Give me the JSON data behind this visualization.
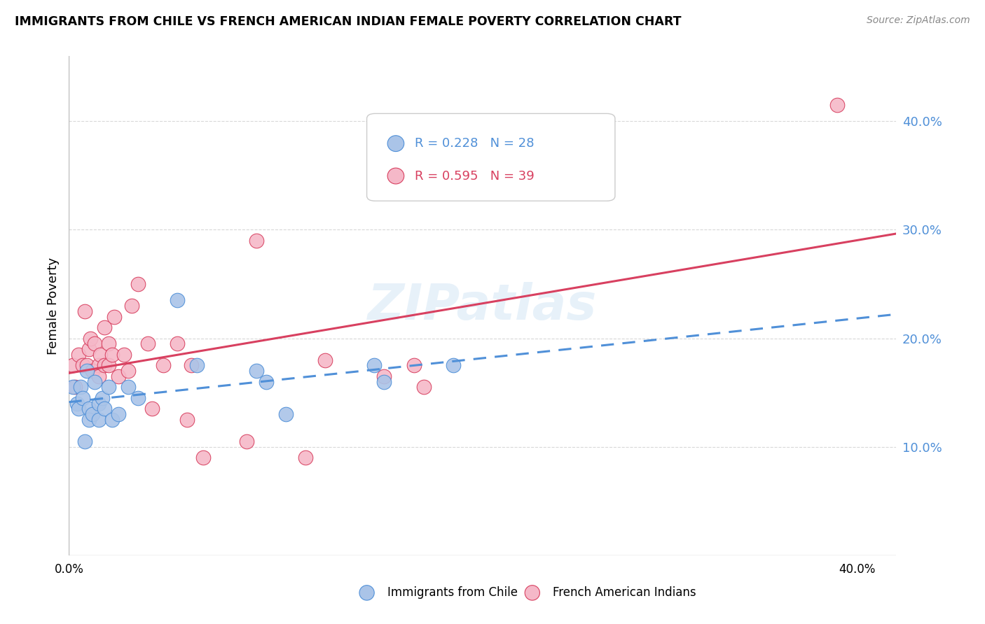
{
  "title": "IMMIGRANTS FROM CHILE VS FRENCH AMERICAN INDIAN FEMALE POVERTY CORRELATION CHART",
  "source": "Source: ZipAtlas.com",
  "ylabel": "Female Poverty",
  "legend_blue_r": "R = 0.228",
  "legend_blue_n": "N = 28",
  "legend_pink_r": "R = 0.595",
  "legend_pink_n": "N = 39",
  "legend_label_blue": "Immigrants from Chile",
  "legend_label_pink": "French American Indians",
  "blue_color": "#aac4e8",
  "pink_color": "#f5b8c8",
  "line_blue_color": "#5090d8",
  "line_pink_color": "#d84060",
  "blue_points_x": [
    0.002,
    0.004,
    0.005,
    0.006,
    0.007,
    0.008,
    0.009,
    0.01,
    0.01,
    0.012,
    0.013,
    0.015,
    0.015,
    0.017,
    0.018,
    0.02,
    0.022,
    0.025,
    0.03,
    0.035,
    0.055,
    0.065,
    0.095,
    0.1,
    0.11,
    0.155,
    0.16,
    0.195
  ],
  "blue_points_y": [
    0.155,
    0.14,
    0.135,
    0.155,
    0.145,
    0.105,
    0.17,
    0.135,
    0.125,
    0.13,
    0.16,
    0.14,
    0.125,
    0.145,
    0.135,
    0.155,
    0.125,
    0.13,
    0.155,
    0.145,
    0.235,
    0.175,
    0.17,
    0.16,
    0.13,
    0.175,
    0.16,
    0.175
  ],
  "pink_points_x": [
    0.002,
    0.003,
    0.005,
    0.007,
    0.008,
    0.009,
    0.01,
    0.011,
    0.012,
    0.013,
    0.015,
    0.015,
    0.016,
    0.018,
    0.018,
    0.02,
    0.02,
    0.022,
    0.023,
    0.025,
    0.028,
    0.03,
    0.032,
    0.035,
    0.04,
    0.042,
    0.048,
    0.055,
    0.06,
    0.062,
    0.068,
    0.09,
    0.095,
    0.12,
    0.13,
    0.16,
    0.175,
    0.18,
    0.39
  ],
  "pink_points_y": [
    0.175,
    0.155,
    0.185,
    0.175,
    0.225,
    0.175,
    0.19,
    0.2,
    0.17,
    0.195,
    0.175,
    0.165,
    0.185,
    0.21,
    0.175,
    0.195,
    0.175,
    0.185,
    0.22,
    0.165,
    0.185,
    0.17,
    0.23,
    0.25,
    0.195,
    0.135,
    0.175,
    0.195,
    0.125,
    0.175,
    0.09,
    0.105,
    0.29,
    0.09,
    0.18,
    0.165,
    0.175,
    0.155,
    0.415
  ],
  "xlim": [
    0.0,
    0.42
  ],
  "ylim": [
    0.0,
    0.46
  ],
  "xticks": [
    0.0,
    0.1,
    0.2,
    0.3,
    0.4
  ],
  "xtick_labels": [
    "0.0%",
    "",
    "",
    "",
    "40.0%"
  ],
  "yticks_right": [
    0.1,
    0.2,
    0.3,
    0.4
  ],
  "ytick_labels_right": [
    "10.0%",
    "20.0%",
    "30.0%",
    "40.0%"
  ],
  "background_color": "#ffffff",
  "grid_color": "#d8d8d8"
}
